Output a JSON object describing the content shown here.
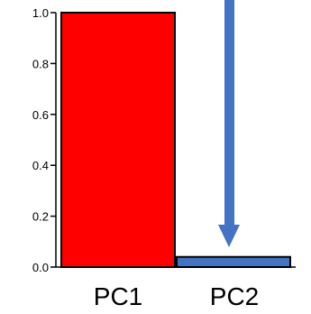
{
  "chart_data": {
    "type": "bar",
    "categories": [
      "PC1",
      "PC2"
    ],
    "values": [
      1.0,
      0.04
    ],
    "ylim": [
      0.0,
      1.0
    ],
    "yticks": [
      0.0,
      0.2,
      0.4,
      0.6,
      0.8,
      1.0
    ],
    "ytick_labels": [
      "0.0",
      "0.2",
      "0.4",
      "0.6",
      "0.8",
      "1.0"
    ],
    "bar_colors": [
      "#ff0000",
      "#4472c4"
    ],
    "grid": false,
    "annotations": [
      {
        "type": "arrow",
        "direction": "down",
        "points_to": "PC2",
        "color": "#4472c4"
      }
    ]
  }
}
